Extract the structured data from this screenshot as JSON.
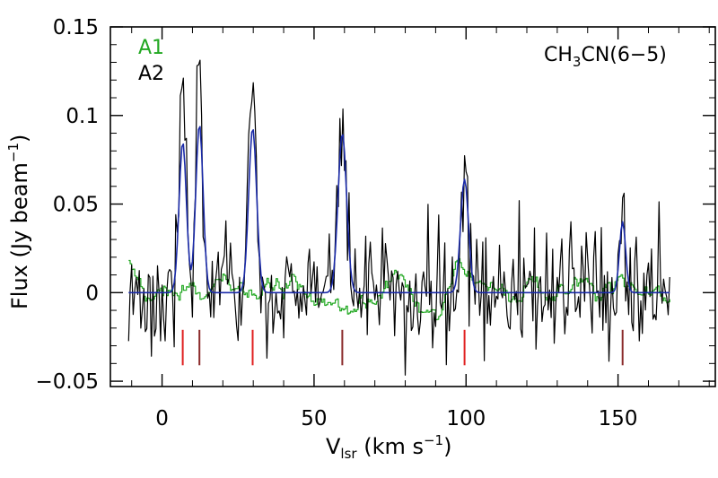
{
  "chart_data": {
    "type": "line",
    "title": "CH3CN(6-5)",
    "title_parts": {
      "base": "CH",
      "sub": "3",
      "rest": "CN(6−5)"
    },
    "xlabel": "Vlsr (km s-1)",
    "xlabel_parts": {
      "base": "V",
      "sub": "lsr",
      "rest": " (km s",
      "sup": "−1",
      "close": ")"
    },
    "ylabel": "Flux (Jy beam-1)",
    "ylabel_parts": {
      "base": "Flux (Jy beam",
      "sup": "−1",
      "close": ")"
    },
    "xlim": [
      -17,
      182
    ],
    "ylim": [
      -0.053,
      0.15
    ],
    "x_ticks": [
      0,
      50,
      100,
      150
    ],
    "x_tick_labels": [
      "0",
      "50",
      "100",
      "150"
    ],
    "y_ticks": [
      -0.05,
      0,
      0.05,
      0.1,
      0.15
    ],
    "y_tick_labels": [
      "−0.05",
      "0",
      "0.05",
      "0.1",
      "0.15"
    ],
    "grid": false,
    "legend": {
      "placement": "top-left",
      "entries": [
        {
          "name": "A1",
          "color": "#22a822"
        },
        {
          "name": "A2",
          "color": "#000000"
        }
      ]
    },
    "x_start": -11,
    "x_end": 167,
    "x_step": 0.5,
    "series": [
      {
        "name": "A1",
        "color": "#22a822",
        "style": "steps",
        "noise_sigma": 0.011,
        "smooth": 6,
        "seed": 7
      },
      {
        "name": "A2",
        "color": "#000000",
        "style": "line",
        "noise_sigma": 0.017,
        "seed": 3,
        "peaks": [
          {
            "center": 6.8,
            "amplitude": 0.13,
            "width": 1.1
          },
          {
            "center": 12.3,
            "amplitude": 0.115,
            "width": 1.1
          },
          {
            "center": 29.8,
            "amplitude": 0.11,
            "width": 1.2
          },
          {
            "center": 59.3,
            "amplitude": 0.105,
            "width": 1.3
          },
          {
            "center": 99.5,
            "amplitude": 0.07,
            "width": 1.2
          },
          {
            "center": 151.5,
            "amplitude": 0.04,
            "width": 1.0
          }
        ]
      },
      {
        "name": "fit",
        "color": "#1a2aa8",
        "style": "line",
        "peaks": [
          {
            "center": 6.8,
            "amplitude": 0.085,
            "width": 1.2
          },
          {
            "center": 12.3,
            "amplitude": 0.095,
            "width": 1.2
          },
          {
            "center": 29.8,
            "amplitude": 0.093,
            "width": 1.3
          },
          {
            "center": 59.3,
            "amplitude": 0.09,
            "width": 1.4
          },
          {
            "center": 99.5,
            "amplitude": 0.064,
            "width": 1.3
          },
          {
            "center": 151.5,
            "amplitude": 0.04,
            "width": 1.0
          }
        ]
      }
    ],
    "markers": [
      {
        "x": 6.8,
        "color": "#e02020"
      },
      {
        "x": 12.3,
        "color": "#8a2a2a"
      },
      {
        "x": 29.8,
        "color": "#e02020"
      },
      {
        "x": 59.3,
        "color": "#8a2a2a"
      },
      {
        "x": 99.5,
        "color": "#e02020"
      },
      {
        "x": 151.5,
        "color": "#8a2a2a"
      }
    ],
    "marker_y_range": [
      -0.041,
      -0.021
    ]
  }
}
